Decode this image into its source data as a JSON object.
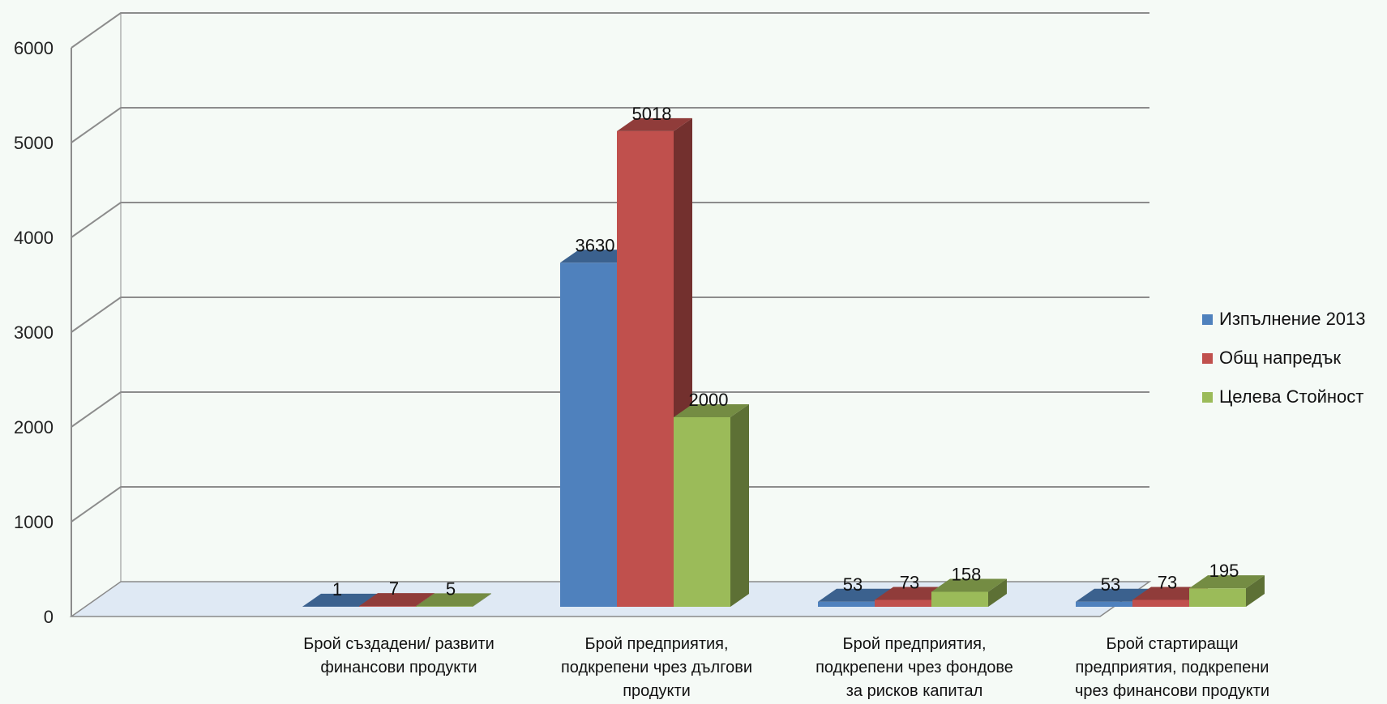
{
  "chart_data": {
    "type": "bar",
    "variant": "3d-clustered",
    "categories": [
      [
        "Брой създадени/ развити",
        "финансови продукти"
      ],
      [
        "Брой предприятия,",
        "подкрепени чрез дългови",
        "продукти"
      ],
      [
        "Брой предприятия,",
        "подкрепени чрез фондове",
        "за рисков капитал"
      ],
      [
        "Брой стартиращи",
        "предприятия, подкрепени",
        "чрез финансови продукти"
      ]
    ],
    "series": [
      {
        "name": "Изпълнение 2013",
        "values": [
          1,
          3630,
          53,
          53
        ],
        "color": "#4f81bd"
      },
      {
        "name": "Общ напредък",
        "values": [
          7,
          5018,
          73,
          73
        ],
        "color": "#c0504d"
      },
      {
        "name": "Целева Стойност",
        "values": [
          5,
          2000,
          158,
          195
        ],
        "color": "#9bbb59"
      }
    ],
    "yticks": [
      "0",
      "1000",
      "2000",
      "3000",
      "4000",
      "5000",
      "6000"
    ],
    "ylim": [
      0,
      6000
    ],
    "grid": true,
    "legend_position": "right",
    "data_labels": true
  }
}
